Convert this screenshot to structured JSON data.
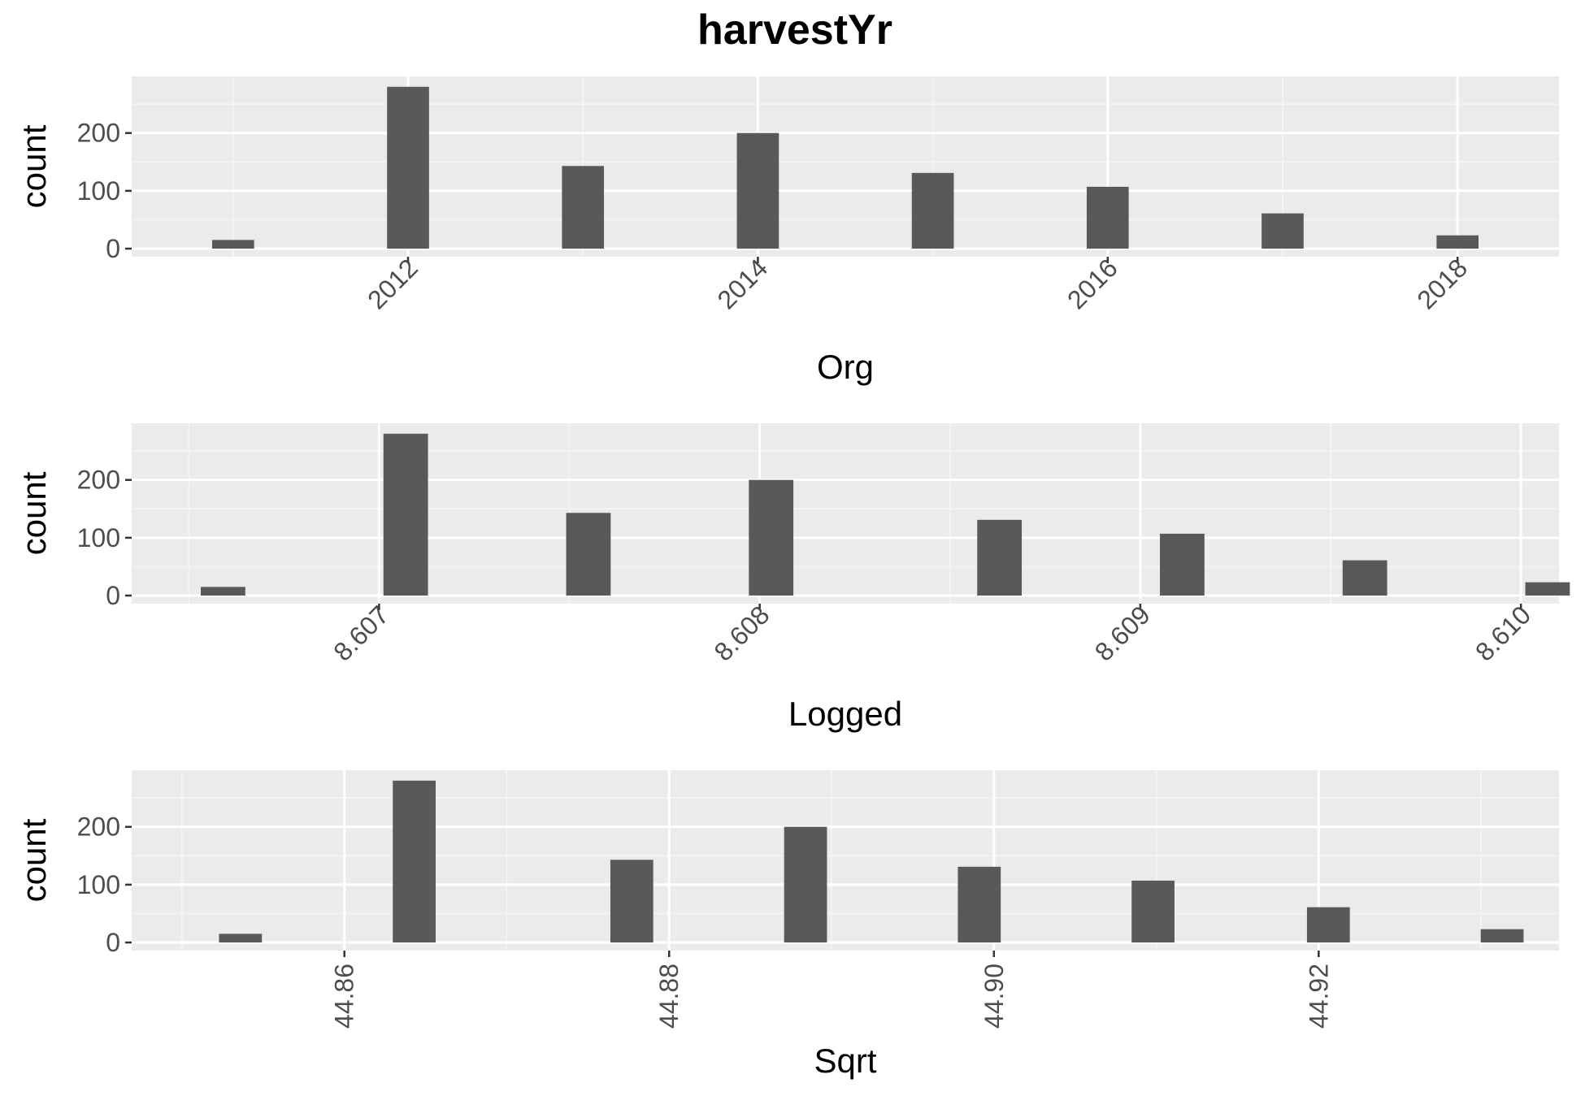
{
  "title": "harvestYr",
  "colors": {
    "panel_background": "#ebebeb",
    "grid_major": "#ffffff",
    "grid_minor": "#f5f5f5",
    "bar_fill": "#595959",
    "tick_text": "#4d4d4d",
    "title_text": "#000000"
  },
  "chart_data": [
    {
      "type": "bar",
      "panel": "Org",
      "xlabel": "Org",
      "ylabel": "count",
      "xlim": [
        2010.42,
        2018.58
      ],
      "ylim": [
        -14,
        298
      ],
      "x_ticks": [
        "2012",
        "2014",
        "2016",
        "2018"
      ],
      "x_tick_values": [
        2012,
        2014,
        2016,
        2018
      ],
      "y_ticks": [
        "0",
        "100",
        "200"
      ],
      "y_tick_values": [
        0,
        100,
        200
      ],
      "x_tick_angle": 45,
      "bar_width": 0.24,
      "x": [
        2011,
        2012,
        2013,
        2014,
        2015,
        2016,
        2017,
        2018
      ],
      "values": [
        15,
        280,
        143,
        200,
        131,
        107,
        61,
        23
      ],
      "grid": true
    },
    {
      "type": "bar",
      "panel": "Logged",
      "xlabel": "Logged",
      "ylabel": "count",
      "xlim": [
        8.60635,
        8.6101
      ],
      "ylim": [
        -14,
        298
      ],
      "x_ticks": [
        "8.607",
        "8.608",
        "8.609",
        "8.610"
      ],
      "x_tick_values": [
        8.607,
        8.608,
        8.609,
        8.61
      ],
      "y_ticks": [
        "0",
        "100",
        "200"
      ],
      "y_tick_values": [
        0,
        100,
        200
      ],
      "x_tick_angle": 45,
      "bar_width": 0.000117,
      "x": [
        8.60659,
        8.60707,
        8.60755,
        8.60803,
        8.60863,
        8.60911,
        8.60959,
        8.61007
      ],
      "values": [
        15,
        280,
        143,
        200,
        131,
        107,
        61,
        23
      ],
      "grid": true
    },
    {
      "type": "bar",
      "panel": "Sqrt",
      "xlabel": "Sqrt",
      "ylabel": "count",
      "xlim": [
        44.8469,
        44.9348
      ],
      "ylim": [
        -14,
        298
      ],
      "x_ticks": [
        "44.86",
        "44.88",
        "44.90",
        "44.92"
      ],
      "x_tick_values": [
        44.86,
        44.88,
        44.9,
        44.92
      ],
      "y_ticks": [
        "0",
        "100",
        "200"
      ],
      "y_tick_values": [
        0,
        100,
        200
      ],
      "x_tick_angle": 90,
      "bar_width": 0.00264,
      "x": [
        44.8536,
        44.8643,
        44.8777,
        44.8884,
        44.8991,
        44.9098,
        44.9206,
        44.9313
      ],
      "values": [
        15,
        280,
        143,
        200,
        131,
        107,
        61,
        23
      ],
      "grid": true
    }
  ]
}
